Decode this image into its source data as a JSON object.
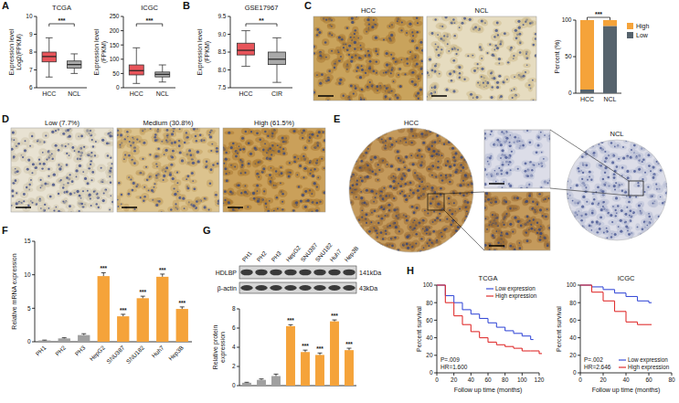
{
  "figure": {
    "panel_labels": [
      "A",
      "B",
      "C",
      "D",
      "E",
      "F",
      "G",
      "H"
    ],
    "images": {
      "C": [
        "HCC",
        "NCL"
      ],
      "D": [
        "Low (7.7%)",
        "Medium (30.8%)",
        "High (61.5%)"
      ],
      "E": [
        "HCC",
        "NCL"
      ]
    },
    "blot": [
      {
        "protein": "HDLBP",
        "size": "141kDa"
      },
      {
        "protein": "β-actin",
        "size": "43kDa"
      }
    ]
  },
  "chart_data": [
    {
      "type": "box",
      "title": "TCGA",
      "categories": [
        "HCC",
        "NCL"
      ],
      "colors": [
        "#e8545a",
        "#a9a9a9"
      ],
      "boxes": [
        {
          "min": 6.6,
          "q1": 7.45,
          "median": 7.75,
          "q3": 8.0,
          "max": 8.8
        },
        {
          "min": 6.8,
          "q1": 7.1,
          "median": 7.3,
          "q3": 7.5,
          "max": 7.9
        }
      ],
      "ylim": [
        6,
        10
      ],
      "yticks": [
        6,
        7,
        8,
        9,
        10
      ],
      "ylabel": [
        "Expression level",
        "Log2(FPKM)"
      ],
      "annotation": "***"
    },
    {
      "type": "box",
      "title": "ICGC",
      "categories": [
        "HCC",
        "NCL"
      ],
      "colors": [
        "#e8545a",
        "#a9a9a9"
      ],
      "boxes": [
        {
          "min": 15,
          "q1": 45,
          "median": 60,
          "q3": 80,
          "max": 140
        },
        {
          "min": 20,
          "q1": 38,
          "median": 47,
          "q3": 55,
          "max": 80
        }
      ],
      "ylim": [
        0,
        250
      ],
      "yticks": [
        0,
        50,
        100,
        150,
        200,
        250
      ],
      "ylabel": [
        "Expression level",
        "(FPKM)"
      ],
      "annotation": "***"
    },
    {
      "type": "box",
      "title": "GSE17967",
      "categories": [
        "HCC",
        "CIR"
      ],
      "colors": [
        "#e8545a",
        "#a9a9a9"
      ],
      "boxes": [
        {
          "min": 8.1,
          "q1": 8.42,
          "median": 8.55,
          "q3": 8.75,
          "max": 9.1
        },
        {
          "min": 7.65,
          "q1": 8.15,
          "median": 8.3,
          "q3": 8.5,
          "max": 8.9
        }
      ],
      "ylim": [
        7.5,
        9.5
      ],
      "yticks": [
        7.5,
        {
          "value": 8,
          "label": "8.0"
        },
        8.5,
        {
          "value": 9,
          "label": "9.0"
        },
        9.5
      ],
      "ylabel": [
        "Expression level",
        "(FPKM)"
      ],
      "annotation": "**"
    },
    {
      "type": "bar",
      "stacked": true,
      "categories": [
        "HCC",
        "NCL"
      ],
      "series": [
        {
          "name": "Low",
          "color": "#56636d",
          "values": [
            5,
            92
          ]
        },
        {
          "name": "High",
          "color": "#f5a33a",
          "values": [
            95,
            8
          ]
        }
      ],
      "ylim": [
        0,
        100
      ],
      "yticks": [
        0,
        50,
        100
      ],
      "ylabel": "Percent (%)",
      "annotation": "***",
      "legend": "right"
    },
    {
      "type": "bar",
      "categories": [
        "PH1",
        "PH2",
        "PH3",
        "HepG2",
        "SNU387",
        "SNU182",
        "Huh7",
        "Hep3B"
      ],
      "values": [
        0.2,
        0.5,
        1.0,
        9.8,
        3.8,
        6.5,
        9.7,
        4.9
      ],
      "errors": [
        0.05,
        0.1,
        0.2,
        0.5,
        0.3,
        0.3,
        0.4,
        0.3
      ],
      "colors": [
        "#a0a0a0",
        "#a0a0a0",
        "#a0a0a0",
        "#f5a33a",
        "#f5a33a",
        "#f5a33a",
        "#f5a33a",
        "#f5a33a"
      ],
      "annotations": [
        null,
        null,
        null,
        "***",
        "***",
        "***",
        "***",
        "***"
      ],
      "ylim": [
        0,
        15
      ],
      "yticks": [
        0,
        5,
        10,
        15
      ],
      "ylabel": "Relative mRNA expression"
    },
    {
      "type": "bar",
      "categories": [
        "PH1",
        "PH2",
        "PH3",
        "HepG2",
        "SNU387",
        "SNU182",
        "Huh7",
        "Hep3B"
      ],
      "values": [
        0.3,
        0.6,
        1.0,
        6.2,
        3.5,
        3.2,
        6.7,
        3.7
      ],
      "errors": [
        0.05,
        0.1,
        0.2,
        0.15,
        0.2,
        0.2,
        0.15,
        0.2
      ],
      "colors": [
        "#a0a0a0",
        "#a0a0a0",
        "#a0a0a0",
        "#f5a33a",
        "#f5a33a",
        "#f5a33a",
        "#f5a33a",
        "#f5a33a"
      ],
      "annotations": [
        null,
        null,
        null,
        "***",
        "***",
        "***",
        "***",
        "***"
      ],
      "ylim": [
        0,
        8
      ],
      "yticks": [
        0,
        2,
        4,
        6,
        8
      ],
      "ylabel": [
        "Relative protein",
        "expression"
      ],
      "tick_labels": "y"
    },
    {
      "type": "line",
      "line_style": "step",
      "title": "TCGA",
      "x": [
        0,
        10,
        20,
        30,
        40,
        50,
        60,
        70,
        80,
        90,
        100,
        110,
        120
      ],
      "series": [
        {
          "name": "Low expression",
          "color": "#3b4fd8",
          "values": [
            100,
            88,
            80,
            72,
            67,
            62,
            57,
            52,
            48,
            45,
            42,
            38,
            null
          ]
        },
        {
          "name": "High expression",
          "color": "#e03030",
          "values": [
            100,
            80,
            65,
            55,
            47,
            40,
            35,
            32,
            30,
            28,
            25,
            25,
            22
          ]
        }
      ],
      "xlim": [
        0,
        120
      ],
      "xticks": [
        0,
        20,
        40,
        60,
        80,
        100,
        120
      ],
      "ylim": [
        0,
        100
      ],
      "yticks": [
        0,
        20,
        40,
        60,
        80,
        100
      ],
      "xlabel": "Follow up time (months)",
      "ylabel": "Percent survival",
      "legend": "upper right",
      "annotations": [
        "P=.009",
        "HR=1.600"
      ]
    },
    {
      "type": "line",
      "line_style": "step",
      "title": "ICGC",
      "x": [
        0,
        10,
        20,
        30,
        40,
        50,
        60,
        70
      ],
      "series": [
        {
          "name": "Low expression",
          "color": "#3b4fd8",
          "values": [
            100,
            98,
            95,
            91,
            87,
            82,
            80,
            null
          ]
        },
        {
          "name": "High expression",
          "color": "#e03030",
          "values": [
            100,
            92,
            82,
            70,
            58,
            55,
            55,
            null
          ]
        }
      ],
      "xlim": [
        0,
        80
      ],
      "xticks": [
        0,
        20,
        40,
        60,
        80
      ],
      "ylim": [
        0,
        100
      ],
      "yticks": [
        0,
        20,
        40,
        60,
        80,
        100
      ],
      "xlabel": "Follow up time (months)",
      "ylabel": "Percent survival",
      "legend": "lower right",
      "annotations": [
        "P=.002",
        "HR=2.646"
      ]
    }
  ]
}
